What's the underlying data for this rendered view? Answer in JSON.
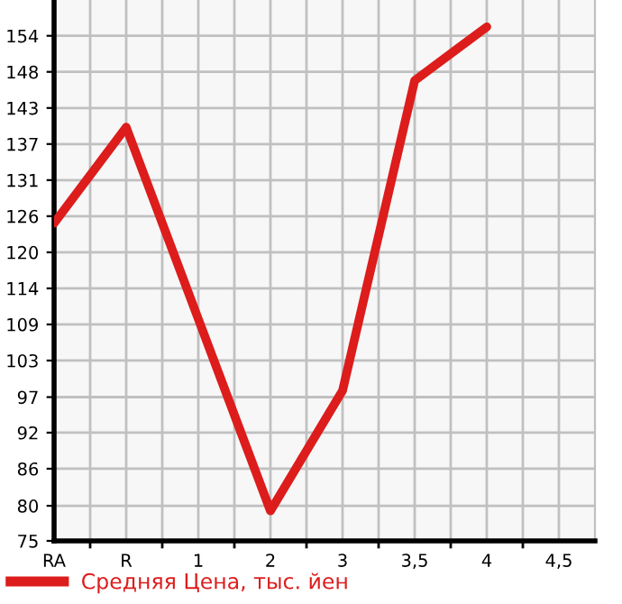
{
  "chart_data": {
    "type": "line",
    "categories": [
      "RA",
      "R",
      "1",
      "2",
      "3",
      "3,5",
      "4",
      "4,5"
    ],
    "series": [
      {
        "name": "Средняя Цена, тыс. йен",
        "color": "#dd1c1c",
        "values": [
          124.7,
          139.7,
          109.7,
          79.7,
          98.5,
          147,
          155.4,
          null
        ]
      }
    ],
    "ylim": [
      75,
      159.6
    ],
    "yticks": [
      75,
      {
        "value": 80.49,
        "label": "80"
      },
      {
        "value": 86.29,
        "label": "86"
      },
      {
        "value": 91.93,
        "label": "92"
      },
      {
        "value": 97.49,
        "label": "97"
      },
      {
        "value": 103.21,
        "label": "103"
      },
      {
        "value": 108.86,
        "label": "109"
      },
      {
        "value": 114.5,
        "label": "114"
      },
      {
        "value": 120.14,
        "label": "120"
      },
      {
        "value": 125.79,
        "label": "126"
      },
      {
        "value": 131.43,
        "label": "131"
      },
      {
        "value": 137.07,
        "label": "137"
      },
      {
        "value": 142.71,
        "label": "143"
      },
      {
        "value": 148.36,
        "label": "148"
      },
      154
    ],
    "grid": true,
    "legend": "bottom",
    "marker": "none",
    "line_style": "solid"
  }
}
